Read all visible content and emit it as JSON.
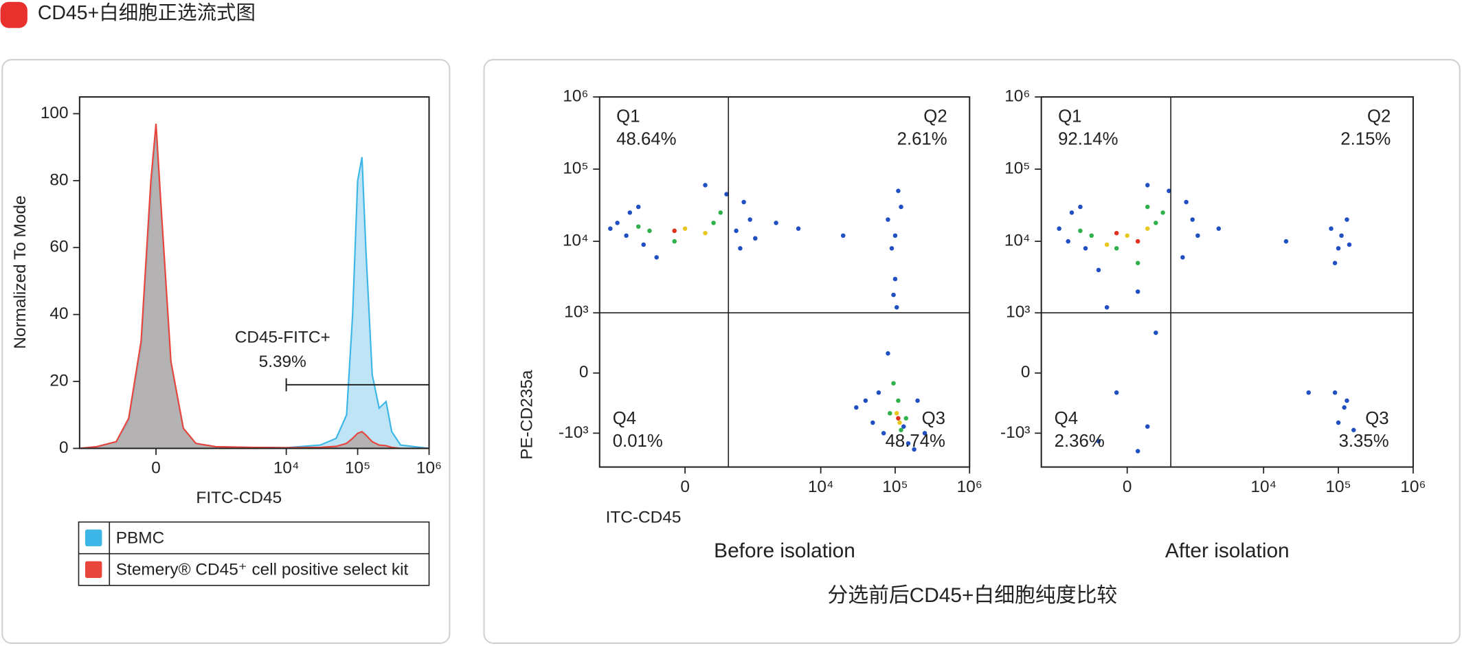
{
  "title": "CD45+白细胞正选流式图",
  "caption": "分选前后CD45+白细胞纯度比较",
  "chart_data": [
    {
      "type": "area",
      "ylabel": "Normalized To Mode",
      "xlabel": "FITC-CD45",
      "xscale": "biexponential",
      "xlim": [
        -1750,
        1000000
      ],
      "ylim": [
        0,
        105
      ],
      "xticks": [
        0,
        {
          "value": 10000,
          "label": "10⁴"
        },
        {
          "value": 100000,
          "label": "10⁵"
        },
        {
          "value": 1000000,
          "label": "10⁶"
        }
      ],
      "yticks": [
        0,
        20,
        40,
        60,
        80,
        100
      ],
      "x": [
        -1750,
        -1000,
        -500,
        -300,
        -150,
        -50,
        0,
        50,
        150,
        300,
        500,
        1000,
        3000,
        10000,
        30000,
        50000,
        70000,
        85000,
        100000,
        115000,
        130000,
        160000,
        200000,
        250000,
        300000,
        400000,
        1000000
      ],
      "series": [
        {
          "name": "PBMC",
          "color": "#3cb6e6",
          "fill": "#bfe4f6",
          "values": [
            0,
            0.5,
            2,
            8,
            30,
            75,
            95,
            70,
            25,
            6,
            1.5,
            0.5,
            0.3,
            0.2,
            1,
            3,
            10,
            40,
            80,
            87,
            60,
            22,
            12,
            14,
            5,
            1,
            0
          ]
        },
        {
          "name": "Stemery® CD45⁺ cell positive select kit",
          "color": "#e8453c",
          "fill": "#b3a9a8",
          "values": [
            0,
            0.5,
            2,
            9,
            32,
            80,
            97,
            72,
            26,
            6,
            1.5,
            0.5,
            0.3,
            0.2,
            0.3,
            0.6,
            1.5,
            3,
            4.5,
            5,
            4,
            2,
            1,
            0.8,
            0.3,
            0,
            0
          ]
        }
      ],
      "gate": {
        "label": "CD45-FITC+",
        "value": 5.39,
        "value_label": "5.39%",
        "range": [
          10000,
          1000000
        ],
        "level": 19
      }
    },
    {
      "type": "scatter",
      "title": "Before isolation",
      "xlabel": "ITC-CD45",
      "ylabel": "PE-CD235a",
      "xscale": "biexponential",
      "yscale": "biexponential",
      "xlim": [
        -2100,
        1000000
      ],
      "ylim": [
        -3000,
        1000000
      ],
      "xticks": [
        0,
        {
          "value": 10000,
          "label": "10⁴"
        },
        {
          "value": 100000,
          "label": "10⁵"
        },
        {
          "value": 1000000,
          "label": "10⁶"
        }
      ],
      "yticks": [
        {
          "value": -1000,
          "label": "-10³"
        },
        0,
        {
          "value": 1000,
          "label": "10³"
        },
        {
          "value": 10000,
          "label": "10⁴"
        },
        {
          "value": 100000,
          "label": "10⁵"
        },
        {
          "value": 1000000,
          "label": "10⁶"
        }
      ],
      "gate": {
        "x": 535,
        "y": 1000
      },
      "quadrants": {
        "names": [
          "Q1",
          "Q2",
          "Q3",
          "Q4"
        ],
        "values": [
          48.64,
          2.61,
          48.74,
          0.01
        ],
        "value_labels": [
          "48.64%",
          "2.61%",
          "48.74%",
          "0.01%"
        ]
      },
      "series": [
        {
          "color": "#1f4fc0",
          "x": [
            -900,
            -600,
            800,
            1100,
            -300,
            500,
            -1200,
            900,
            -500,
            200,
            -1500,
            1300,
            -800,
            700,
            2500,
            5000,
            20000,
            80000,
            100000,
            120000,
            90000,
            110000,
            100000,
            95000,
            105000,
            30000,
            60000,
            70000,
            150000,
            200000,
            80000,
            130000,
            50000,
            250000,
            180000,
            40000
          ],
          "y": [
            12000,
            30000,
            8000,
            20000,
            6000,
            45000,
            18000,
            35000,
            9000,
            60000,
            15000,
            11000,
            25000,
            14000,
            18000,
            15000,
            12000,
            20000,
            12000,
            30000,
            8000,
            50000,
            3000,
            1800,
            1200,
            -400,
            -200,
            -1000,
            -1400,
            -300,
            200,
            -800,
            -700,
            -1000,
            -1700,
            -300
          ]
        },
        {
          "color": "#2fb04a",
          "x": [
            -400,
            300,
            -100,
            400,
            -600,
            85000,
            110000,
            120000,
            95000,
            140000
          ],
          "y": [
            14000,
            18000,
            10000,
            25000,
            16000,
            -500,
            -300,
            -900,
            -100,
            -600
          ]
        },
        {
          "color": "#e8c820",
          "x": [
            0,
            200,
            105000,
            115000
          ],
          "y": [
            15000,
            13000,
            -500,
            -700
          ]
        },
        {
          "color": "#e03020",
          "x": [
            -100,
            110000
          ],
          "y": [
            14000,
            -600
          ]
        }
      ]
    },
    {
      "type": "scatter",
      "title": "After isolation",
      "xscale": "biexponential",
      "yscale": "biexponential",
      "xlim": [
        -2100,
        1000000
      ],
      "ylim": [
        -3000,
        1000000
      ],
      "xticks": [
        0,
        {
          "value": 10000,
          "label": "10⁴"
        },
        {
          "value": 100000,
          "label": "10⁵"
        },
        {
          "value": 1000000,
          "label": "10⁶"
        }
      ],
      "yticks": [
        {
          "value": -1000,
          "label": "-10³"
        },
        0,
        {
          "value": 1000,
          "label": "10³"
        },
        {
          "value": 10000,
          "label": "10⁴"
        },
        {
          "value": 100000,
          "label": "10⁵"
        },
        {
          "value": 1000000,
          "label": "10⁶"
        }
      ],
      "gate": {
        "x": 535,
        "y": 1000
      },
      "quadrants": {
        "names": [
          "Q1",
          "Q2",
          "Q3",
          "Q4"
        ],
        "values": [
          92.14,
          2.15,
          3.35,
          2.36
        ],
        "value_labels": [
          "92.14%",
          "2.15%",
          "3.35%",
          "2.36%"
        ]
      },
      "series": [
        {
          "color": "#1f4fc0",
          "x": [
            -900,
            -600,
            800,
            1100,
            -300,
            500,
            -1200,
            900,
            -500,
            200,
            1300,
            -800,
            100,
            -200,
            300,
            -100,
            200,
            -300,
            100,
            2500,
            20000,
            80000,
            100000,
            130000,
            90000,
            110000,
            140000,
            90000,
            120000,
            100000,
            130000,
            40000,
            160000
          ],
          "y": [
            10000,
            30000,
            6000,
            20000,
            4000,
            50000,
            15000,
            35000,
            8000,
            60000,
            12000,
            25000,
            2000,
            1200,
            500,
            -200,
            -800,
            -1300,
            -1800,
            15000,
            10000,
            15000,
            8000,
            20000,
            5000,
            12000,
            9000,
            -200,
            -400,
            -700,
            -300,
            -200,
            -900
          ]
        },
        {
          "color": "#2fb04a",
          "x": [
            -400,
            300,
            -100,
            400,
            -600,
            100,
            200
          ],
          "y": [
            12000,
            18000,
            8000,
            25000,
            14000,
            5000,
            30000
          ]
        },
        {
          "color": "#e8c820",
          "x": [
            0,
            200,
            -200
          ],
          "y": [
            12000,
            15000,
            9000
          ]
        },
        {
          "color": "#e03020",
          "x": [
            -100,
            100
          ],
          "y": [
            13000,
            10000
          ]
        }
      ]
    }
  ]
}
